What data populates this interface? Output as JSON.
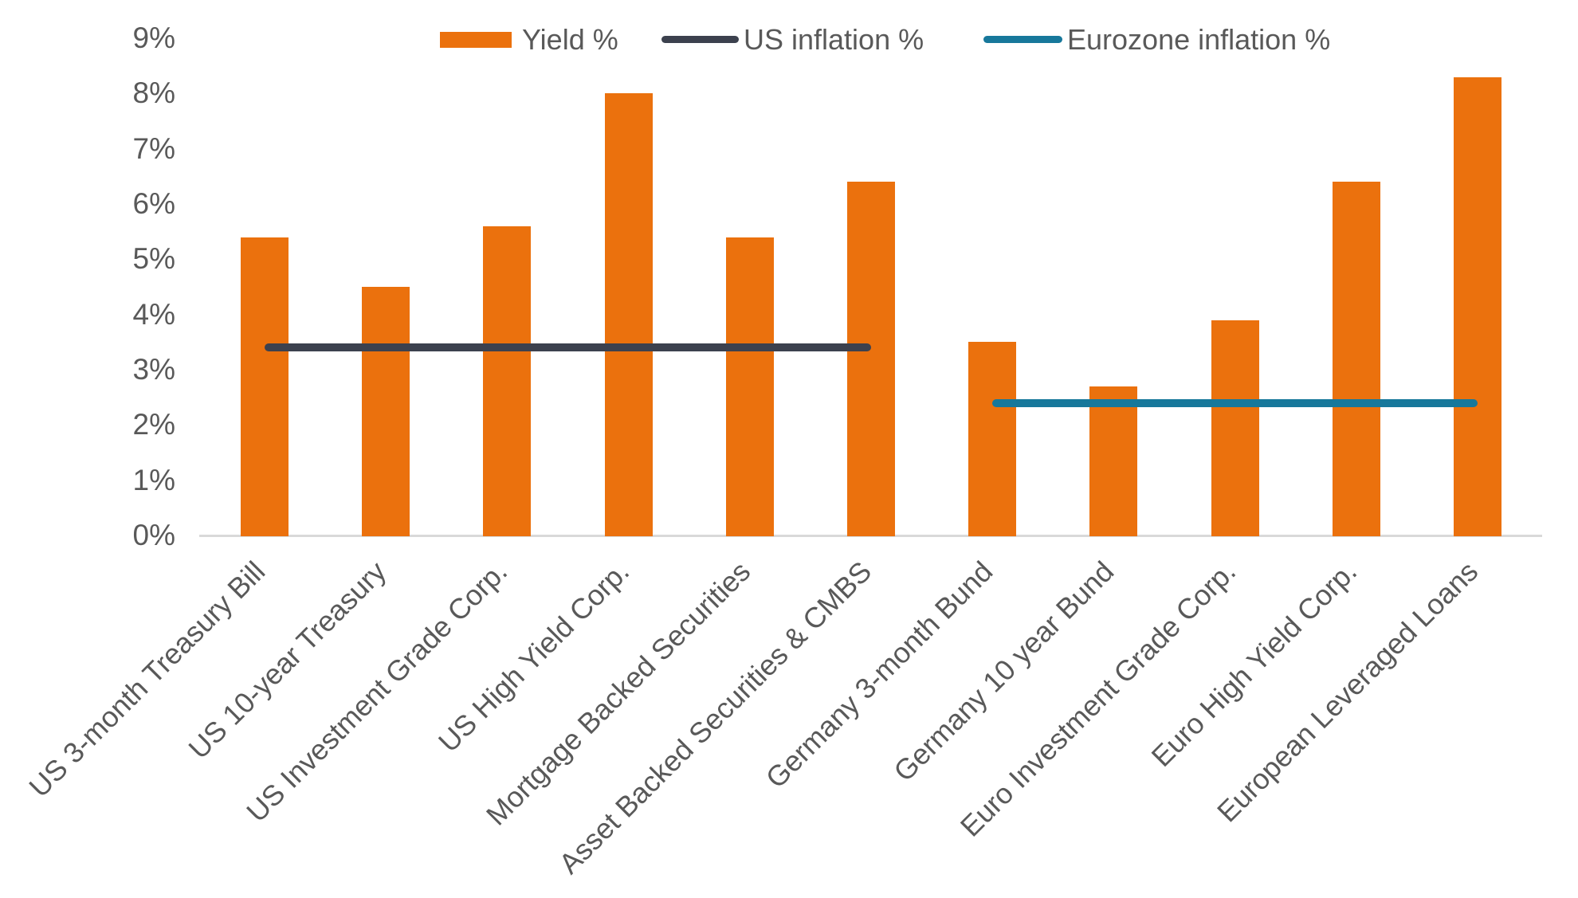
{
  "chart_data": {
    "type": "bar",
    "title": "",
    "categories": [
      "US 3-month Treasury Bill",
      "US 10-year Treasury",
      "US Investment Grade Corp.",
      "US High Yield Corp.",
      "Mortgage Backed Securities",
      "Asset Backed Securities & CMBS",
      "Germany 3-month Bund",
      "Germany 10 year Bund",
      "Euro Investment Grade Corp.",
      "Euro High Yield Corp.",
      "European Leveraged Loans"
    ],
    "series": [
      {
        "name": "Yield %",
        "type": "bar",
        "color": "#EB710D",
        "values": [
          5.4,
          4.5,
          5.6,
          8.0,
          5.4,
          6.4,
          3.5,
          2.7,
          3.9,
          6.4,
          8.3
        ]
      },
      {
        "name": "US inflation %",
        "type": "line",
        "color": "#3C414E",
        "value": 3.4,
        "span_category_indices": [
          0,
          5
        ]
      },
      {
        "name": "Eurozone inflation %",
        "type": "line",
        "color": "#17789B",
        "value": 2.4,
        "span_category_indices": [
          6,
          10
        ]
      }
    ],
    "xlabel": "",
    "ylabel": "",
    "ylim": [
      0,
      9
    ],
    "y_tick_labels": [
      "0%",
      "1%",
      "2%",
      "3%",
      "4%",
      "5%",
      "6%",
      "7%",
      "8%",
      "9%"
    ],
    "grid": false,
    "legend_position": "top",
    "x_label_rotation_deg": 45
  },
  "colors": {
    "bar": "#EB710D",
    "us_inflation_line": "#3C414E",
    "eurozone_inflation_line": "#17789B",
    "axis_line": "#D9D9D9",
    "text": "#595959",
    "background": "#FFFFFF"
  }
}
